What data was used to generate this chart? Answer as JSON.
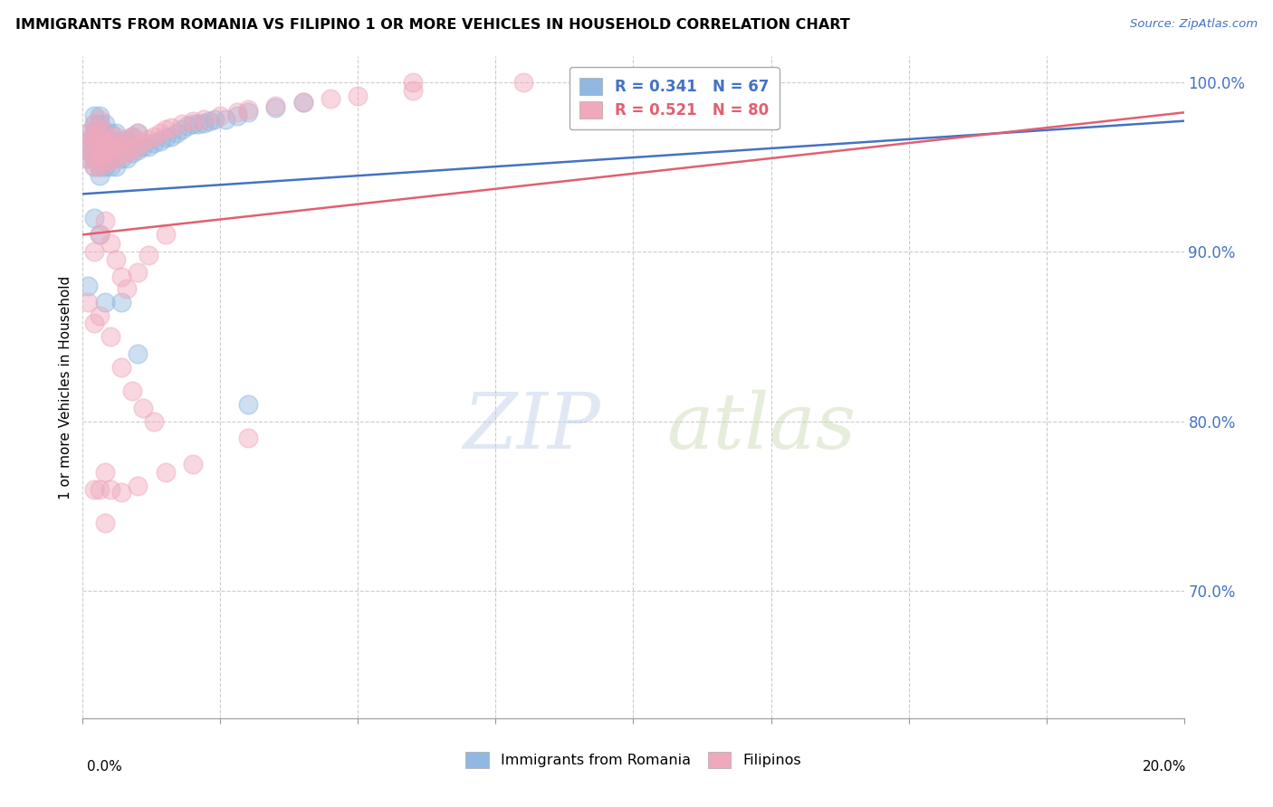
{
  "title": "IMMIGRANTS FROM ROMANIA VS FILIPINO 1 OR MORE VEHICLES IN HOUSEHOLD CORRELATION CHART",
  "source": "Source: ZipAtlas.com",
  "ylabel": "1 or more Vehicles in Household",
  "ytick_labels": [
    "100.0%",
    "90.0%",
    "80.0%",
    "70.0%"
  ],
  "ytick_values": [
    1.0,
    0.9,
    0.8,
    0.7
  ],
  "xlim": [
    0.0,
    0.2
  ],
  "ylim": [
    0.625,
    1.015
  ],
  "romania_R": 0.341,
  "romania_N": 67,
  "filipino_R": 0.521,
  "filipino_N": 80,
  "romania_color": "#90b8e0",
  "filipino_color": "#f0a8bc",
  "romania_line_color": "#4472C4",
  "filipino_line_color": "#E06070",
  "watermark_zip": "ZIP",
  "watermark_atlas": "atlas",
  "legend_label_1": "Immigrants from Romania",
  "legend_label_2": "Filipinos",
  "romania_x": [
    0.001,
    0.001,
    0.001,
    0.001,
    0.002,
    0.002,
    0.002,
    0.002,
    0.002,
    0.002,
    0.002,
    0.003,
    0.003,
    0.003,
    0.003,
    0.003,
    0.003,
    0.003,
    0.003,
    0.004,
    0.004,
    0.004,
    0.004,
    0.004,
    0.004,
    0.005,
    0.005,
    0.005,
    0.005,
    0.005,
    0.006,
    0.006,
    0.006,
    0.007,
    0.007,
    0.008,
    0.008,
    0.009,
    0.009,
    0.01,
    0.01,
    0.011,
    0.012,
    0.013,
    0.014,
    0.015,
    0.016,
    0.017,
    0.018,
    0.019,
    0.02,
    0.021,
    0.022,
    0.023,
    0.024,
    0.026,
    0.028,
    0.03,
    0.035,
    0.04,
    0.001,
    0.002,
    0.003,
    0.004,
    0.007,
    0.01,
    0.03
  ],
  "romania_y": [
    0.955,
    0.96,
    0.965,
    0.97,
    0.95,
    0.955,
    0.96,
    0.965,
    0.97,
    0.975,
    0.98,
    0.945,
    0.95,
    0.955,
    0.96,
    0.965,
    0.97,
    0.975,
    0.98,
    0.95,
    0.955,
    0.96,
    0.965,
    0.97,
    0.975,
    0.95,
    0.955,
    0.96,
    0.965,
    0.97,
    0.95,
    0.96,
    0.97,
    0.955,
    0.965,
    0.955,
    0.965,
    0.958,
    0.968,
    0.96,
    0.97,
    0.962,
    0.962,
    0.964,
    0.965,
    0.967,
    0.968,
    0.97,
    0.972,
    0.974,
    0.975,
    0.975,
    0.976,
    0.977,
    0.978,
    0.978,
    0.98,
    0.982,
    0.985,
    0.988,
    0.88,
    0.92,
    0.91,
    0.87,
    0.87,
    0.84,
    0.81
  ],
  "filipino_x": [
    0.001,
    0.001,
    0.001,
    0.001,
    0.002,
    0.002,
    0.002,
    0.002,
    0.002,
    0.003,
    0.003,
    0.003,
    0.003,
    0.003,
    0.003,
    0.004,
    0.004,
    0.004,
    0.004,
    0.005,
    0.005,
    0.005,
    0.006,
    0.006,
    0.006,
    0.007,
    0.007,
    0.008,
    0.008,
    0.009,
    0.009,
    0.01,
    0.01,
    0.011,
    0.012,
    0.013,
    0.014,
    0.015,
    0.016,
    0.018,
    0.02,
    0.022,
    0.025,
    0.028,
    0.03,
    0.035,
    0.04,
    0.045,
    0.05,
    0.06,
    0.001,
    0.002,
    0.003,
    0.004,
    0.005,
    0.006,
    0.007,
    0.008,
    0.01,
    0.012,
    0.015,
    0.002,
    0.003,
    0.005,
    0.007,
    0.009,
    0.011,
    0.013,
    0.002,
    0.004,
    0.003,
    0.004,
    0.005,
    0.007,
    0.01,
    0.015,
    0.02,
    0.03,
    0.06,
    0.08
  ],
  "filipino_y": [
    0.955,
    0.96,
    0.965,
    0.97,
    0.95,
    0.955,
    0.962,
    0.968,
    0.975,
    0.95,
    0.956,
    0.962,
    0.968,
    0.972,
    0.978,
    0.952,
    0.958,
    0.964,
    0.97,
    0.954,
    0.96,
    0.966,
    0.955,
    0.962,
    0.968,
    0.958,
    0.964,
    0.958,
    0.966,
    0.96,
    0.968,
    0.962,
    0.97,
    0.965,
    0.966,
    0.968,
    0.97,
    0.972,
    0.973,
    0.975,
    0.977,
    0.978,
    0.98,
    0.982,
    0.984,
    0.986,
    0.988,
    0.99,
    0.992,
    0.995,
    0.87,
    0.9,
    0.91,
    0.918,
    0.905,
    0.895,
    0.885,
    0.878,
    0.888,
    0.898,
    0.91,
    0.858,
    0.862,
    0.85,
    0.832,
    0.818,
    0.808,
    0.8,
    0.76,
    0.74,
    0.76,
    0.77,
    0.76,
    0.758,
    0.762,
    0.77,
    0.775,
    0.79,
    1.0,
    1.0
  ]
}
